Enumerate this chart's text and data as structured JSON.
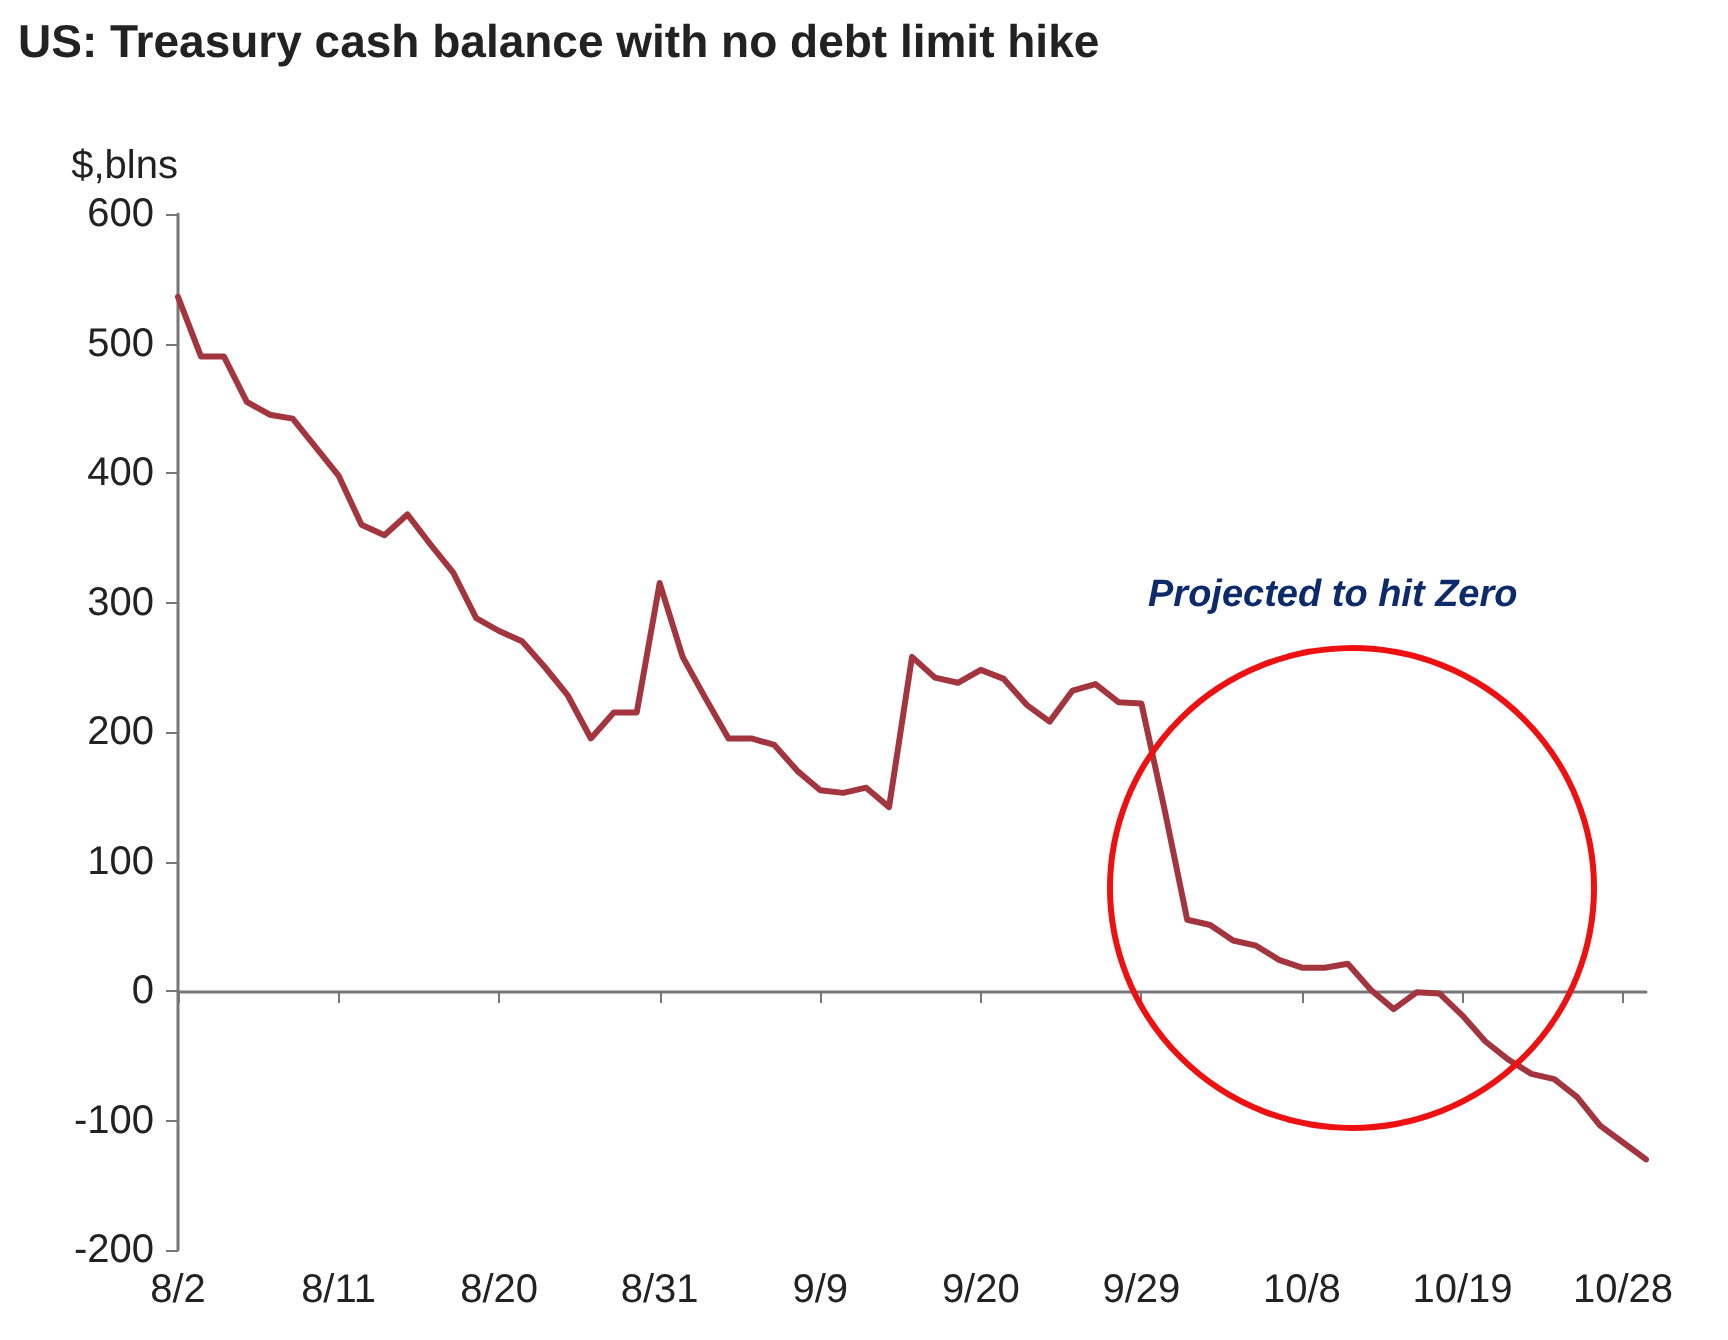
{
  "chart_data": {
    "type": "line",
    "title": "US: Treasury cash balance with no debt limit hike",
    "ylabel": "$,blns",
    "categories": [
      "8/2",
      null,
      null,
      null,
      null,
      null,
      null,
      "8/11",
      null,
      null,
      null,
      null,
      null,
      null,
      "8/20",
      null,
      null,
      null,
      null,
      null,
      null,
      "8/31",
      null,
      null,
      null,
      null,
      null,
      null,
      "9/9",
      null,
      null,
      null,
      null,
      null,
      null,
      "9/20",
      null,
      null,
      null,
      null,
      null,
      null,
      "9/29",
      null,
      null,
      null,
      null,
      null,
      null,
      "10/8",
      null,
      null,
      null,
      null,
      null,
      null,
      "10/19",
      null,
      null,
      null,
      null,
      null,
      null,
      "10/28",
      null
    ],
    "series": [
      {
        "color": "#a3353f",
        "values": [
          536,
          490,
          490,
          455,
          445,
          442,
          420,
          398,
          360,
          352,
          368,
          345,
          323,
          288,
          278,
          270,
          250,
          228,
          195,
          215,
          215,
          315,
          258,
          226,
          195,
          195,
          190,
          170,
          155,
          153,
          157,
          142,
          258,
          242,
          238,
          248,
          241,
          221,
          208,
          232,
          237,
          223,
          222,
          141,
          55,
          51,
          39,
          35,
          24,
          18,
          18,
          21,
          1,
          -14,
          -1,
          -2,
          -19,
          -39,
          -53,
          -64,
          -68,
          -82,
          -104,
          -117,
          -130
        ]
      }
    ],
    "ylim": [
      -200,
      600
    ],
    "yticks": [
      -200,
      -100,
      0,
      100,
      200,
      300,
      400,
      500,
      600
    ],
    "marker": "none",
    "line_style": "solid",
    "annotations": [
      "Projected to hit Zero"
    ]
  }
}
